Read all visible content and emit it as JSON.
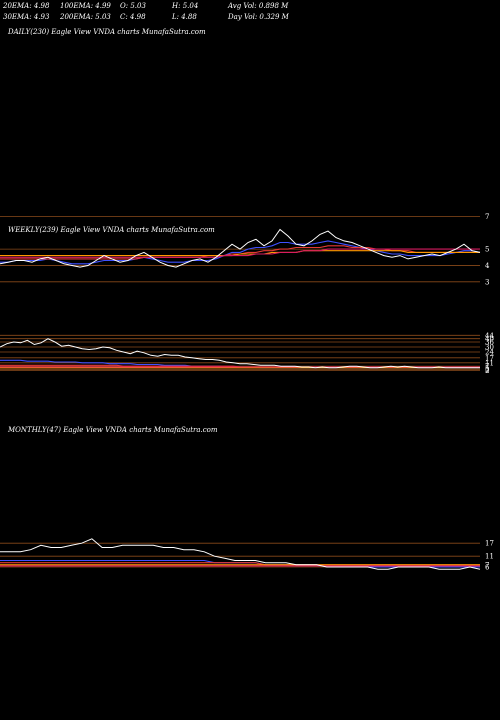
{
  "header": {
    "row1": [
      {
        "label": "20EMA:",
        "value": "4.98"
      },
      {
        "label": "100EMA:",
        "value": "4.99"
      },
      {
        "label": "O:",
        "value": "5.03"
      },
      {
        "label": "H:",
        "value": "5.04"
      },
      {
        "label": "Avg Vol:",
        "value": "0.898 M"
      }
    ],
    "row2": [
      {
        "label": "30EMA:",
        "value": "4.93"
      },
      {
        "label": "200EMA:",
        "value": "5.03"
      },
      {
        "label": "C:",
        "value": "4.98"
      },
      {
        "label": "L:",
        "value": "4.88"
      },
      {
        "label": "Day Vol:",
        "value": "0.329 M"
      }
    ]
  },
  "panels": {
    "daily": {
      "label": "DAILY(230) Eagle   View  VNDA charts MunafaSutra.com"
    },
    "weekly": {
      "label": "WEEKLY(239) Eagle   View  VNDA charts MunafaSutra.com"
    },
    "monthly": {
      "label": "MONTHLY(47) Eagle   View  VNDA charts MunafaSutra.com"
    }
  },
  "chart_data": [
    {
      "type": "line",
      "timeframe": "weekly",
      "y_ticks": [
        7,
        5,
        4,
        3
      ],
      "ylim": [
        2.5,
        8
      ],
      "series": [
        {
          "color": "#ffffff",
          "values": [
            4.1,
            4.2,
            4.3,
            4.3,
            4.2,
            4.4,
            4.5,
            4.3,
            4.1,
            4.0,
            3.9,
            4.0,
            4.3,
            4.6,
            4.4,
            4.2,
            4.3,
            4.6,
            4.8,
            4.5,
            4.2,
            4.0,
            3.9,
            4.1,
            4.3,
            4.4,
            4.2,
            4.5,
            4.9,
            5.3,
            5.0,
            5.4,
            5.6,
            5.2,
            5.5,
            6.2,
            5.8,
            5.3,
            5.2,
            5.5,
            5.9,
            6.1,
            5.7,
            5.5,
            5.4,
            5.2,
            5.0,
            4.8,
            4.6,
            4.5,
            4.6,
            4.4,
            4.5,
            4.6,
            4.7,
            4.6,
            4.8,
            5.0,
            5.3,
            4.9,
            4.8
          ]
        },
        {
          "color": "#3f51ff",
          "values": [
            4.2,
            4.2,
            4.3,
            4.3,
            4.3,
            4.3,
            4.4,
            4.3,
            4.2,
            4.1,
            4.1,
            4.1,
            4.2,
            4.3,
            4.3,
            4.3,
            4.3,
            4.4,
            4.5,
            4.4,
            4.3,
            4.2,
            4.2,
            4.2,
            4.3,
            4.3,
            4.3,
            4.4,
            4.6,
            4.8,
            4.8,
            5.0,
            5.1,
            5.1,
            5.2,
            5.4,
            5.4,
            5.3,
            5.3,
            5.3,
            5.4,
            5.5,
            5.4,
            5.3,
            5.2,
            5.1,
            5.0,
            4.9,
            4.8,
            4.7,
            4.7,
            4.6,
            4.6,
            4.6,
            4.6,
            4.6,
            4.7,
            4.8,
            4.9,
            4.9,
            4.8
          ]
        },
        {
          "color": "#e53935",
          "values": [
            4.4,
            4.4,
            4.4,
            4.4,
            4.4,
            4.4,
            4.4,
            4.4,
            4.4,
            4.4,
            4.4,
            4.4,
            4.4,
            4.4,
            4.4,
            4.4,
            4.4,
            4.4,
            4.5,
            4.5,
            4.5,
            4.5,
            4.5,
            4.5,
            4.5,
            4.5,
            4.6,
            4.6,
            4.6,
            4.7,
            4.7,
            4.8,
            4.8,
            4.9,
            4.9,
            5.0,
            5.0,
            5.1,
            5.1,
            5.1,
            5.1,
            5.2,
            5.2,
            5.2,
            5.1,
            5.1,
            5.1,
            5.0,
            5.0,
            4.9,
            4.9,
            4.9,
            4.8,
            4.8,
            4.8,
            4.8,
            4.8,
            4.8,
            4.8,
            4.8,
            4.8
          ]
        },
        {
          "color": "#ff9800",
          "values": [
            4.6,
            4.6,
            4.6,
            4.6,
            4.6,
            4.6,
            4.6,
            4.6,
            4.6,
            4.6,
            4.6,
            4.6,
            4.6,
            4.6,
            4.6,
            4.6,
            4.6,
            4.6,
            4.6,
            4.6,
            4.6,
            4.6,
            4.6,
            4.6,
            4.6,
            4.6,
            4.6,
            4.6,
            4.6,
            4.6,
            4.7,
            4.7,
            4.7,
            4.7,
            4.8,
            4.8,
            4.8,
            4.8,
            4.9,
            4.9,
            4.9,
            4.9,
            4.9,
            4.9,
            4.9,
            4.9,
            4.9,
            4.9,
            4.9,
            4.9,
            4.9,
            4.8,
            4.8,
            4.8,
            4.8,
            4.8,
            4.8,
            4.8,
            4.8,
            4.8,
            4.8
          ]
        },
        {
          "color": "#d81b60",
          "values": [
            4.5,
            4.5,
            4.5,
            4.5,
            4.5,
            4.5,
            4.5,
            4.5,
            4.5,
            4.5,
            4.5,
            4.5,
            4.5,
            4.5,
            4.5,
            4.5,
            4.5,
            4.5,
            4.5,
            4.5,
            4.5,
            4.5,
            4.5,
            4.5,
            4.5,
            4.5,
            4.5,
            4.5,
            4.6,
            4.6,
            4.6,
            4.6,
            4.7,
            4.7,
            4.7,
            4.8,
            4.8,
            4.8,
            4.9,
            4.9,
            4.9,
            5.0,
            5.0,
            5.0,
            5.0,
            5.0,
            5.0,
            5.0,
            5.0,
            5.0,
            5.0,
            5.0,
            5.0,
            5.0,
            5.0,
            5.0,
            5.0,
            5.0,
            5.0,
            5.0,
            5.0
          ]
        }
      ]
    },
    {
      "type": "line",
      "timeframe": "monthly-upper",
      "y_ticks": [
        44,
        40,
        36,
        30,
        24,
        17,
        11,
        7,
        5,
        3,
        2
      ],
      "ylim": [
        0,
        60
      ],
      "series": [
        {
          "color": "#ffffff",
          "values": [
            30,
            34,
            36,
            35,
            38,
            33,
            35,
            40,
            36,
            31,
            32,
            30,
            28,
            27,
            28,
            30,
            29,
            26,
            24,
            22,
            25,
            23,
            20,
            19,
            21,
            20,
            20,
            18,
            17,
            16,
            15,
            15,
            14,
            12,
            11,
            10,
            10,
            9,
            8,
            8,
            8,
            7,
            7,
            7,
            6,
            6,
            5,
            6,
            5,
            5,
            6,
            7,
            7,
            6,
            5,
            5,
            6,
            7,
            6,
            7,
            6,
            5,
            5,
            5,
            6,
            5,
            5,
            5,
            5,
            5,
            5
          ]
        },
        {
          "color": "#3f51ff",
          "values": [
            14,
            14,
            14,
            14,
            13,
            13,
            13,
            13,
            12,
            12,
            12,
            12,
            11,
            11,
            11,
            11,
            10,
            10,
            10,
            10,
            9,
            9,
            9,
            9,
            8,
            8,
            8,
            8,
            7,
            7,
            7,
            7,
            7,
            6,
            6,
            6,
            6,
            6,
            5,
            5,
            5,
            5,
            5,
            5,
            5,
            5,
            5,
            5,
            5,
            5,
            5,
            5,
            5,
            5,
            5,
            5,
            5,
            5,
            5,
            5,
            5,
            5,
            5,
            5,
            5,
            5,
            5,
            5,
            5,
            5,
            5
          ]
        },
        {
          "color": "#e53935",
          "values": [
            8,
            8,
            8,
            8,
            8,
            8,
            8,
            8,
            8,
            8,
            8,
            8,
            8,
            8,
            8,
            8,
            8,
            8,
            7,
            7,
            7,
            7,
            7,
            7,
            7,
            7,
            7,
            7,
            7,
            7,
            7,
            7,
            7,
            7,
            7,
            6,
            6,
            6,
            6,
            6,
            6,
            6,
            6,
            6,
            6,
            6,
            6,
            6,
            6,
            6,
            6,
            6,
            6,
            6,
            6,
            6,
            6,
            6,
            6,
            6,
            6,
            6,
            6,
            6,
            6,
            6,
            6,
            6,
            6,
            6,
            6
          ]
        },
        {
          "color": "#ff9800",
          "values": [
            5,
            5,
            5,
            5,
            5,
            5,
            5,
            5,
            5,
            5,
            5,
            5,
            5,
            5,
            5,
            5,
            5,
            5,
            5,
            5,
            5,
            5,
            5,
            5,
            5,
            5,
            5,
            5,
            5,
            5,
            5,
            5,
            5,
            5,
            5,
            5,
            5,
            5,
            5,
            5,
            5,
            5,
            5,
            5,
            5,
            5,
            5,
            5,
            5,
            5,
            5,
            5,
            5,
            5,
            5,
            5,
            5,
            5,
            5,
            5,
            5,
            5,
            5,
            5,
            5,
            5,
            5,
            5,
            5,
            5,
            5
          ]
        },
        {
          "color": "#d81b60",
          "values": [
            6,
            6,
            6,
            6,
            6,
            6,
            6,
            6,
            6,
            6,
            6,
            6,
            6,
            6,
            6,
            6,
            6,
            6,
            6,
            6,
            6,
            6,
            6,
            6,
            6,
            6,
            6,
            6,
            6,
            6,
            6,
            6,
            6,
            6,
            6,
            6,
            6,
            6,
            6,
            6,
            6,
            6,
            6,
            6,
            6,
            6,
            6,
            6,
            6,
            6,
            6,
            6,
            6,
            6,
            6,
            6,
            6,
            6,
            6,
            6,
            6,
            6,
            6,
            6,
            6,
            6,
            6,
            6,
            6,
            6,
            6
          ]
        }
      ]
    },
    {
      "type": "line",
      "timeframe": "monthly",
      "y_ticks": [
        17,
        11,
        7,
        6
      ],
      "ylim": [
        0,
        30
      ],
      "series": [
        {
          "color": "#ffffff",
          "values": [
            13,
            13,
            13,
            14,
            16,
            15,
            15,
            16,
            17,
            19,
            15,
            15,
            16,
            16,
            16,
            16,
            15,
            15,
            14,
            14,
            13,
            11,
            10,
            9,
            9,
            9,
            8,
            8,
            8,
            7,
            7,
            7,
            6,
            6,
            6,
            6,
            6,
            5,
            5,
            6,
            6,
            6,
            6,
            5,
            5,
            5,
            6,
            5
          ]
        },
        {
          "color": "#3f51ff",
          "values": [
            9,
            9,
            9,
            9,
            9,
            9,
            9,
            9,
            9,
            9,
            9,
            9,
            9,
            9,
            9,
            9,
            9,
            9,
            9,
            9,
            9,
            8,
            8,
            8,
            8,
            8,
            7,
            7,
            7,
            7,
            7,
            7,
            6,
            6,
            6,
            6,
            6,
            6,
            6,
            6,
            6,
            6,
            6,
            6,
            6,
            6,
            6,
            6
          ]
        },
        {
          "color": "#e53935",
          "values": [
            8,
            8,
            8,
            8,
            8,
            8,
            8,
            8,
            8,
            8,
            8,
            8,
            8,
            8,
            8,
            8,
            8,
            8,
            8,
            8,
            8,
            8,
            8,
            8,
            8,
            8,
            7,
            7,
            7,
            7,
            7,
            7,
            7,
            7,
            7,
            7,
            7,
            7,
            7,
            7,
            7,
            7,
            7,
            7,
            7,
            7,
            7,
            7
          ]
        },
        {
          "color": "#ff9800",
          "values": [
            7,
            7,
            7,
            7,
            7,
            7,
            7,
            7,
            7,
            7,
            7,
            7,
            7,
            7,
            7,
            7,
            7,
            7,
            7,
            7,
            7,
            7,
            7,
            7,
            7,
            7,
            7,
            7,
            7,
            7,
            7,
            7,
            7,
            7,
            7,
            7,
            7,
            7,
            7,
            7,
            7,
            7,
            7,
            7,
            7,
            7,
            7,
            7
          ]
        },
        {
          "color": "#d81b60",
          "values": [
            6.5,
            6.5,
            6.5,
            6.5,
            6.5,
            6.5,
            6.5,
            6.5,
            6.5,
            6.5,
            6.5,
            6.5,
            6.5,
            6.5,
            6.5,
            6.5,
            6.5,
            6.5,
            6.5,
            6.5,
            6.5,
            6.5,
            6.5,
            6.5,
            6.5,
            6.5,
            6.5,
            6.5,
            6.5,
            6.5,
            6.5,
            6.5,
            6.5,
            6.5,
            6.5,
            6.5,
            6.5,
            6.5,
            6.5,
            6.5,
            6.5,
            6.5,
            6.5,
            6.5,
            6.5,
            6.5,
            6.5,
            6.5
          ]
        }
      ]
    }
  ]
}
